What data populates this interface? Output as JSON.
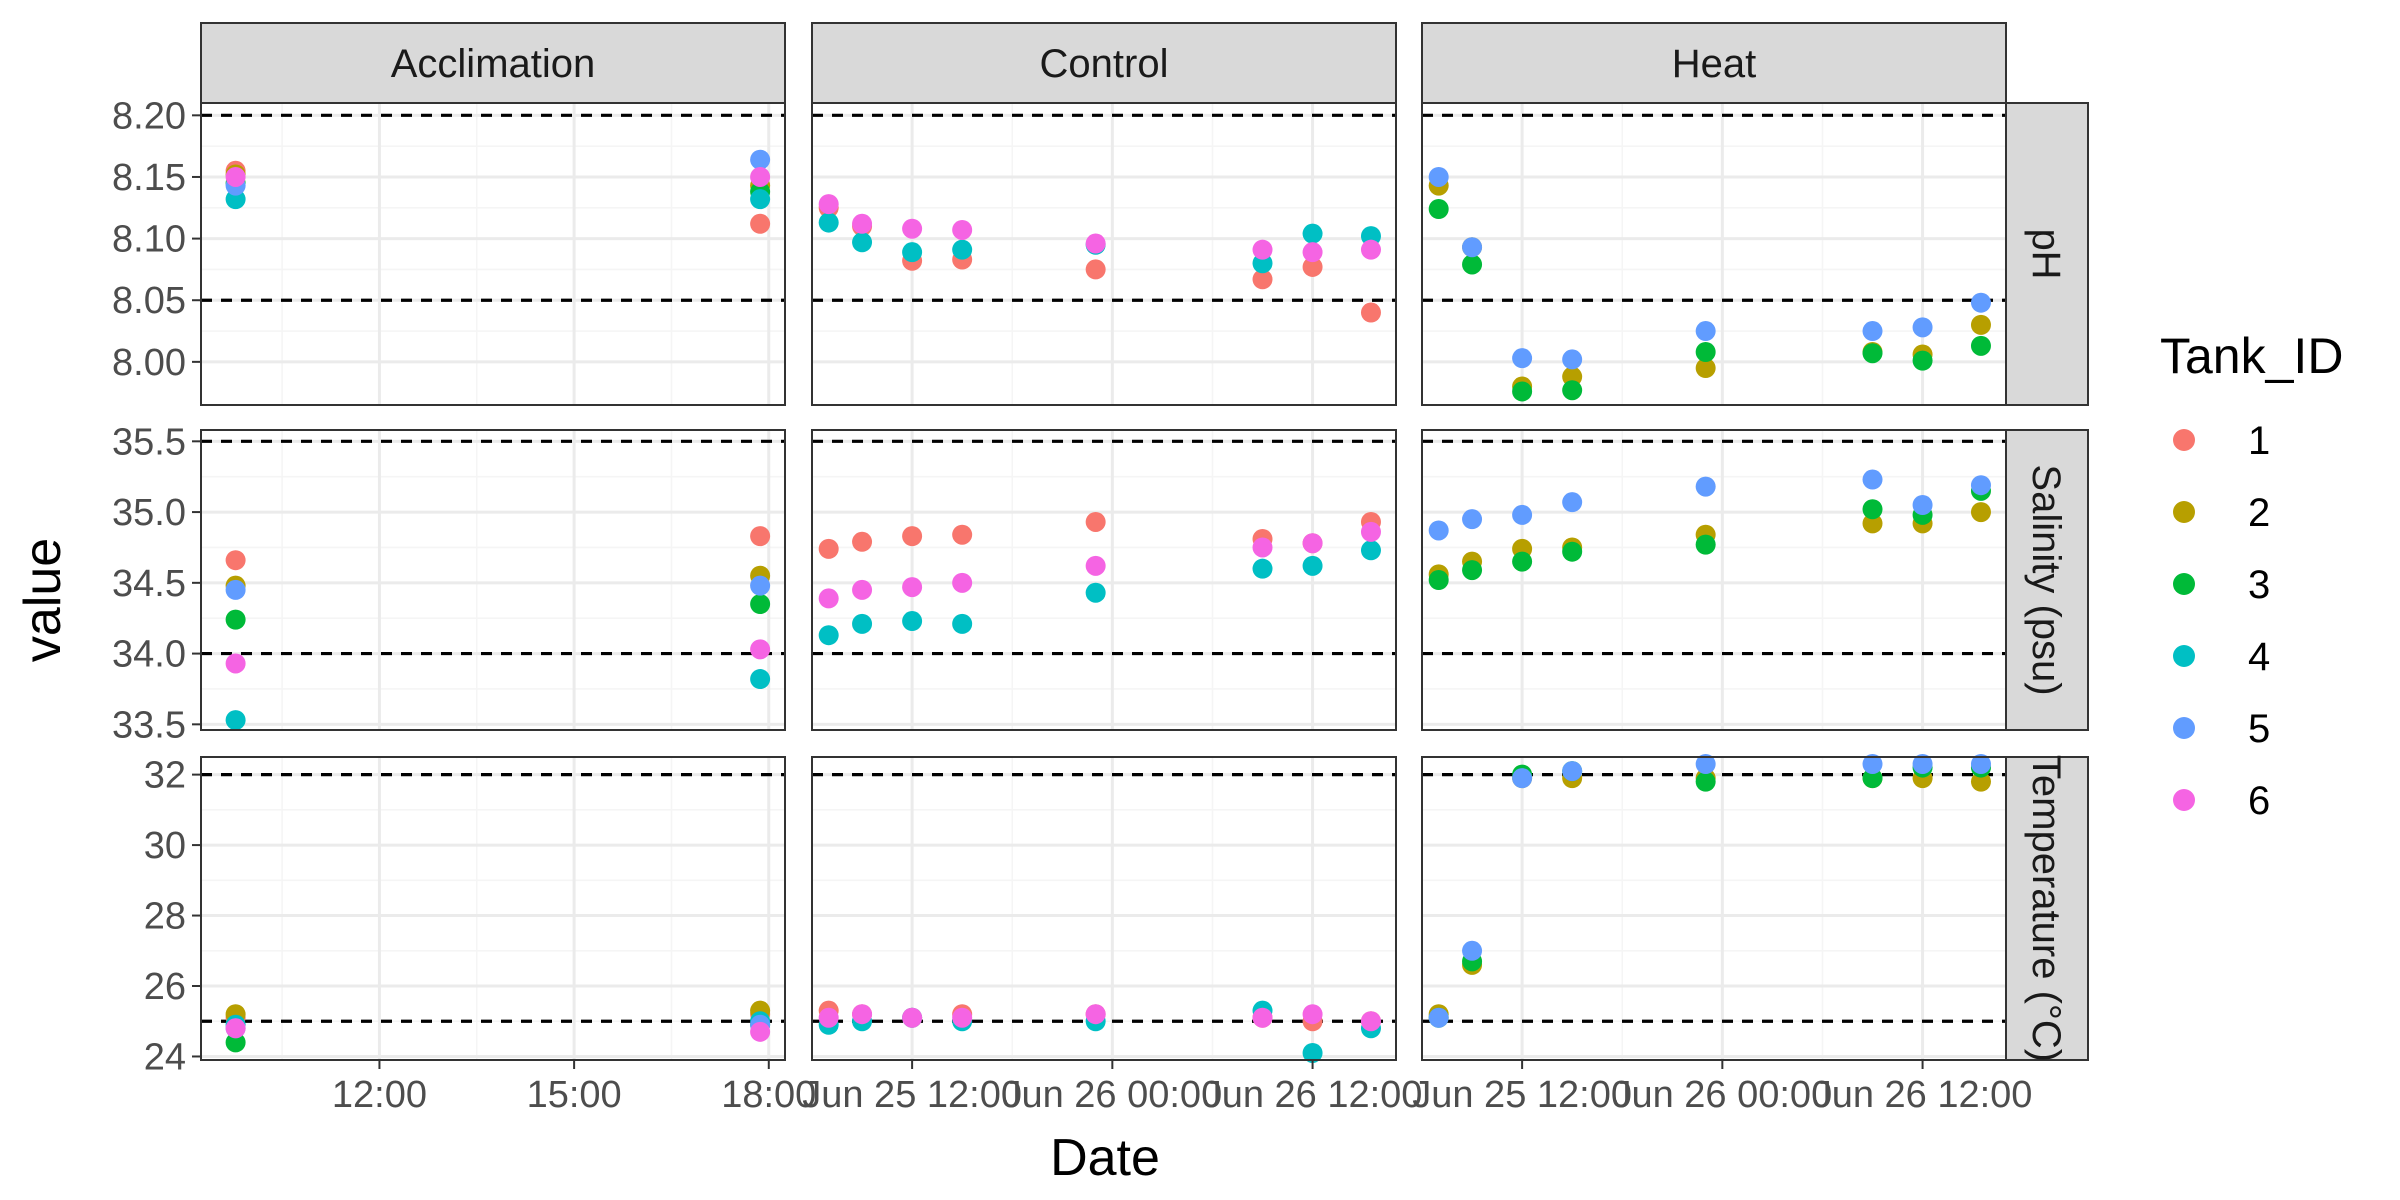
{
  "chart_data": {
    "type": "scatter",
    "xlabel": "Date",
    "ylabel": "value",
    "legend_title": "Tank_ID",
    "legend_position": "right",
    "grid": true,
    "colors": {
      "1": "#F8766D",
      "2": "#B79F00",
      "3": "#00BA38",
      "4": "#00BFC4",
      "5": "#619CFF",
      "6": "#F564E3"
    },
    "legend": [
      "1",
      "2",
      "3",
      "4",
      "5",
      "6"
    ],
    "columns": [
      {
        "label": "Acclimation",
        "xlim": [
          "2024-06-24 09:15",
          "2024-06-24 18:15"
        ],
        "major_ticks": [
          {
            "at": "2024-06-24 12:00",
            "label": "12:00"
          },
          {
            "at": "2024-06-24 15:00",
            "label": "15:00"
          },
          {
            "at": "2024-06-24 18:00",
            "label": "18:00"
          }
        ],
        "minor_ticks": [
          "2024-06-24 10:30",
          "2024-06-24 13:30",
          "2024-06-24 16:30"
        ]
      },
      {
        "label": "Control",
        "xlim": [
          "2024-06-25 06:00",
          "2024-06-26 17:00"
        ],
        "major_ticks": [
          {
            "at": "2024-06-25 12:00",
            "label": "Jun 25 12:00"
          },
          {
            "at": "2024-06-26 00:00",
            "label": "Jun 26 00:00"
          },
          {
            "at": "2024-06-26 12:00",
            "label": "Jun 26 12:00"
          }
        ],
        "minor_ticks": [
          "2024-06-25 06:00",
          "2024-06-25 18:00",
          "2024-06-26 06:00"
        ]
      },
      {
        "label": "Heat",
        "xlim": [
          "2024-06-25 06:00",
          "2024-06-26 17:00"
        ],
        "major_ticks": [
          {
            "at": "2024-06-25 12:00",
            "label": "Jun 25 12:00"
          },
          {
            "at": "2024-06-26 00:00",
            "label": "Jun 26 00:00"
          },
          {
            "at": "2024-06-26 12:00",
            "label": "Jun 26 12:00"
          }
        ],
        "minor_ticks": [
          "2024-06-25 06:00",
          "2024-06-25 18:00",
          "2024-06-26 06:00"
        ]
      }
    ],
    "rows": [
      {
        "label": "pH",
        "ylim": [
          7.965,
          8.21
        ],
        "yticks": [
          8.0,
          8.05,
          8.1,
          8.15,
          8.2
        ],
        "ytick_labels": [
          "8.00",
          "8.05",
          "8.10",
          "8.15",
          "8.20"
        ],
        "hlines": [
          8.05,
          8.2
        ]
      },
      {
        "label": "Salinity (psu)",
        "ylim": [
          33.46,
          35.58
        ],
        "yticks": [
          33.5,
          34.0,
          34.5,
          35.0,
          35.5
        ],
        "ytick_labels": [
          "33.5",
          "34.0",
          "34.5",
          "35.0",
          "35.5"
        ],
        "hlines": [
          34.0,
          35.5
        ]
      },
      {
        "label": "Temperature (°C)",
        "ylim": [
          23.9,
          32.5
        ],
        "yticks": [
          24,
          26,
          28,
          30,
          32
        ],
        "ytick_labels": [
          "24",
          "26",
          "28",
          "30",
          "32"
        ],
        "hlines": [
          25,
          32
        ]
      }
    ],
    "points": [
      {
        "col": "Acclimation",
        "row": "pH",
        "t": "2024-06-24 09:47",
        "values": {
          "1": 8.155,
          "2": 8.152,
          "3": 8.145,
          "4": 8.132,
          "5": 8.143,
          "6": 8.15
        }
      },
      {
        "col": "Acclimation",
        "row": "pH",
        "t": "2024-06-24 17:52",
        "values": {
          "1": 8.112,
          "2": 8.143,
          "3": 8.138,
          "4": 8.132,
          "5": 8.164,
          "6": 8.15
        }
      },
      {
        "col": "Acclimation",
        "row": "Salinity (psu)",
        "t": "2024-06-24 09:47",
        "values": {
          "1": 34.66,
          "2": 34.48,
          "3": 34.24,
          "4": 33.53,
          "5": 34.45,
          "6": 33.93
        }
      },
      {
        "col": "Acclimation",
        "row": "Salinity (psu)",
        "t": "2024-06-24 17:52",
        "values": {
          "1": 34.83,
          "2": 34.55,
          "3": 34.35,
          "4": 33.82,
          "5": 34.48,
          "6": 34.03
        }
      },
      {
        "col": "Acclimation",
        "row": "Temperature (°C)",
        "t": "2024-06-24 09:47",
        "values": {
          "1": 25.1,
          "2": 25.2,
          "3": 24.4,
          "4": 24.9,
          "5": 24.8,
          "6": 24.8
        }
      },
      {
        "col": "Acclimation",
        "row": "Temperature (°C)",
        "t": "2024-06-24 17:52",
        "values": {
          "1": 25.2,
          "2": 25.3,
          "3": 24.9,
          "4": 25.0,
          "5": 24.9,
          "6": 24.7
        }
      },
      {
        "col": "Control",
        "row": "pH",
        "t": "2024-06-25 07:00",
        "values": {
          "1": 8.125,
          "4": 8.113,
          "6": 8.128
        }
      },
      {
        "col": "Control",
        "row": "pH",
        "t": "2024-06-25 09:00",
        "values": {
          "1": 8.11,
          "4": 8.097,
          "6": 8.112
        }
      },
      {
        "col": "Control",
        "row": "pH",
        "t": "2024-06-25 12:00",
        "values": {
          "1": 8.082,
          "4": 8.089,
          "6": 8.108
        }
      },
      {
        "col": "Control",
        "row": "pH",
        "t": "2024-06-25 15:00",
        "values": {
          "1": 8.083,
          "4": 8.091,
          "6": 8.107
        }
      },
      {
        "col": "Control",
        "row": "pH",
        "t": "2024-06-25 23:00",
        "values": {
          "1": 8.075,
          "4": 8.095,
          "6": 8.096
        }
      },
      {
        "col": "Control",
        "row": "pH",
        "t": "2024-06-26 09:00",
        "values": {
          "1": 8.067,
          "4": 8.08,
          "6": 8.091
        }
      },
      {
        "col": "Control",
        "row": "pH",
        "t": "2024-06-26 12:00",
        "values": {
          "1": 8.077,
          "4": 8.104,
          "6": 8.089
        }
      },
      {
        "col": "Control",
        "row": "pH",
        "t": "2024-06-26 15:30",
        "values": {
          "1": 8.04,
          "4": 8.102,
          "6": 8.091
        }
      },
      {
        "col": "Control",
        "row": "Salinity (psu)",
        "t": "2024-06-25 07:00",
        "values": {
          "1": 34.74,
          "4": 34.13,
          "6": 34.39
        }
      },
      {
        "col": "Control",
        "row": "Salinity (psu)",
        "t": "2024-06-25 09:00",
        "values": {
          "1": 34.79,
          "4": 34.21,
          "6": 34.45
        }
      },
      {
        "col": "Control",
        "row": "Salinity (psu)",
        "t": "2024-06-25 12:00",
        "values": {
          "1": 34.83,
          "4": 34.23,
          "6": 34.47
        }
      },
      {
        "col": "Control",
        "row": "Salinity (psu)",
        "t": "2024-06-25 15:00",
        "values": {
          "1": 34.84,
          "4": 34.21,
          "6": 34.5
        }
      },
      {
        "col": "Control",
        "row": "Salinity (psu)",
        "t": "2024-06-25 23:00",
        "values": {
          "1": 34.93,
          "4": 34.43,
          "6": 34.62
        }
      },
      {
        "col": "Control",
        "row": "Salinity (psu)",
        "t": "2024-06-26 09:00",
        "values": {
          "1": 34.81,
          "4": 34.6,
          "6": 34.75
        }
      },
      {
        "col": "Control",
        "row": "Salinity (psu)",
        "t": "2024-06-26 12:00",
        "values": {
          "1": 34.78,
          "4": 34.62,
          "6": 34.78
        }
      },
      {
        "col": "Control",
        "row": "Salinity (psu)",
        "t": "2024-06-26 15:30",
        "values": {
          "1": 34.93,
          "4": 34.73,
          "6": 34.86
        }
      },
      {
        "col": "Control",
        "row": "Temperature (°C)",
        "t": "2024-06-25 07:00",
        "values": {
          "1": 25.3,
          "4": 24.9,
          "6": 25.1
        }
      },
      {
        "col": "Control",
        "row": "Temperature (°C)",
        "t": "2024-06-25 09:00",
        "values": {
          "1": 25.2,
          "4": 25.0,
          "6": 25.2
        }
      },
      {
        "col": "Control",
        "row": "Temperature (°C)",
        "t": "2024-06-25 12:00",
        "values": {
          "1": 25.1,
          "4": 25.1,
          "6": 25.1
        }
      },
      {
        "col": "Control",
        "row": "Temperature (°C)",
        "t": "2024-06-25 15:00",
        "values": {
          "1": 25.2,
          "4": 25.0,
          "6": 25.1
        }
      },
      {
        "col": "Control",
        "row": "Temperature (°C)",
        "t": "2024-06-25 23:00",
        "values": {
          "1": 25.2,
          "4": 25.0,
          "6": 25.2
        }
      },
      {
        "col": "Control",
        "row": "Temperature (°C)",
        "t": "2024-06-26 09:00",
        "values": {
          "1": 25.1,
          "4": 25.3,
          "6": 25.1
        }
      },
      {
        "col": "Control",
        "row": "Temperature (°C)",
        "t": "2024-06-26 12:00",
        "values": {
          "1": 25.0,
          "4": 24.1,
          "6": 25.2
        }
      },
      {
        "col": "Control",
        "row": "Temperature (°C)",
        "t": "2024-06-26 15:30",
        "values": {
          "1": 25.0,
          "4": 24.8,
          "6": 25.0
        }
      },
      {
        "col": "Heat",
        "row": "pH",
        "t": "2024-06-25 07:00",
        "values": {
          "2": 8.143,
          "3": 8.124,
          "5": 8.15
        }
      },
      {
        "col": "Heat",
        "row": "pH",
        "t": "2024-06-25 09:00",
        "values": {
          "2": 8.093,
          "3": 8.079,
          "5": 8.093
        }
      },
      {
        "col": "Heat",
        "row": "pH",
        "t": "2024-06-25 12:00",
        "values": {
          "2": 7.98,
          "3": 7.976,
          "5": 8.003
        }
      },
      {
        "col": "Heat",
        "row": "pH",
        "t": "2024-06-25 15:00",
        "values": {
          "2": 7.988,
          "3": 7.977,
          "5": 8.002
        }
      },
      {
        "col": "Heat",
        "row": "pH",
        "t": "2024-06-25 23:00",
        "values": {
          "2": 7.995,
          "3": 8.008,
          "5": 8.025
        }
      },
      {
        "col": "Heat",
        "row": "pH",
        "t": "2024-06-26 09:00",
        "values": {
          "2": 8.008,
          "3": 8.007,
          "5": 8.025
        }
      },
      {
        "col": "Heat",
        "row": "pH",
        "t": "2024-06-26 12:00",
        "values": {
          "2": 8.006,
          "3": 8.001,
          "5": 8.028
        }
      },
      {
        "col": "Heat",
        "row": "pH",
        "t": "2024-06-26 15:30",
        "values": {
          "2": 8.03,
          "3": 8.013,
          "5": 8.048
        }
      },
      {
        "col": "Heat",
        "row": "Salinity (psu)",
        "t": "2024-06-25 07:00",
        "values": {
          "2": 34.56,
          "3": 34.52,
          "5": 34.87
        }
      },
      {
        "col": "Heat",
        "row": "Salinity (psu)",
        "t": "2024-06-25 09:00",
        "values": {
          "2": 34.65,
          "3": 34.59,
          "5": 34.95
        }
      },
      {
        "col": "Heat",
        "row": "Salinity (psu)",
        "t": "2024-06-25 12:00",
        "values": {
          "2": 34.74,
          "3": 34.65,
          "5": 34.98
        }
      },
      {
        "col": "Heat",
        "row": "Salinity (psu)",
        "t": "2024-06-25 15:00",
        "values": {
          "2": 34.75,
          "3": 34.72,
          "5": 35.07
        }
      },
      {
        "col": "Heat",
        "row": "Salinity (psu)",
        "t": "2024-06-25 23:00",
        "values": {
          "2": 34.84,
          "3": 34.77,
          "5": 35.18
        }
      },
      {
        "col": "Heat",
        "row": "Salinity (psu)",
        "t": "2024-06-26 09:00",
        "values": {
          "2": 34.92,
          "3": 35.02,
          "5": 35.23
        }
      },
      {
        "col": "Heat",
        "row": "Salinity (psu)",
        "t": "2024-06-26 12:00",
        "values": {
          "2": 34.92,
          "3": 34.98,
          "5": 35.05
        }
      },
      {
        "col": "Heat",
        "row": "Salinity (psu)",
        "t": "2024-06-26 15:30",
        "values": {
          "2": 35.0,
          "3": 35.15,
          "5": 35.19
        }
      },
      {
        "col": "Heat",
        "row": "Temperature (°C)",
        "t": "2024-06-25 07:00",
        "values": {
          "2": 25.2,
          "3": 25.1,
          "5": 25.1
        }
      },
      {
        "col": "Heat",
        "row": "Temperature (°C)",
        "t": "2024-06-25 09:00",
        "values": {
          "2": 26.6,
          "3": 26.7,
          "5": 27.0
        }
      },
      {
        "col": "Heat",
        "row": "Temperature (°C)",
        "t": "2024-06-25 12:00",
        "values": {
          "2": 31.9,
          "3": 32.0,
          "5": 31.9
        }
      },
      {
        "col": "Heat",
        "row": "Temperature (°C)",
        "t": "2024-06-25 15:00",
        "values": {
          "2": 31.9,
          "3": 32.1,
          "5": 32.1
        }
      },
      {
        "col": "Heat",
        "row": "Temperature (°C)",
        "t": "2024-06-25 23:00",
        "values": {
          "2": 31.9,
          "3": 31.8,
          "5": 32.3
        }
      },
      {
        "col": "Heat",
        "row": "Temperature (°C)",
        "t": "2024-06-26 09:00",
        "values": {
          "2": 31.9,
          "3": 31.9,
          "5": 32.3
        }
      },
      {
        "col": "Heat",
        "row": "Temperature (°C)",
        "t": "2024-06-26 12:00",
        "values": {
          "2": 31.9,
          "3": 32.2,
          "5": 32.3
        }
      },
      {
        "col": "Heat",
        "row": "Temperature (°C)",
        "t": "2024-06-26 15:30",
        "values": {
          "2": 31.8,
          "3": 32.2,
          "5": 32.3
        }
      }
    ]
  }
}
